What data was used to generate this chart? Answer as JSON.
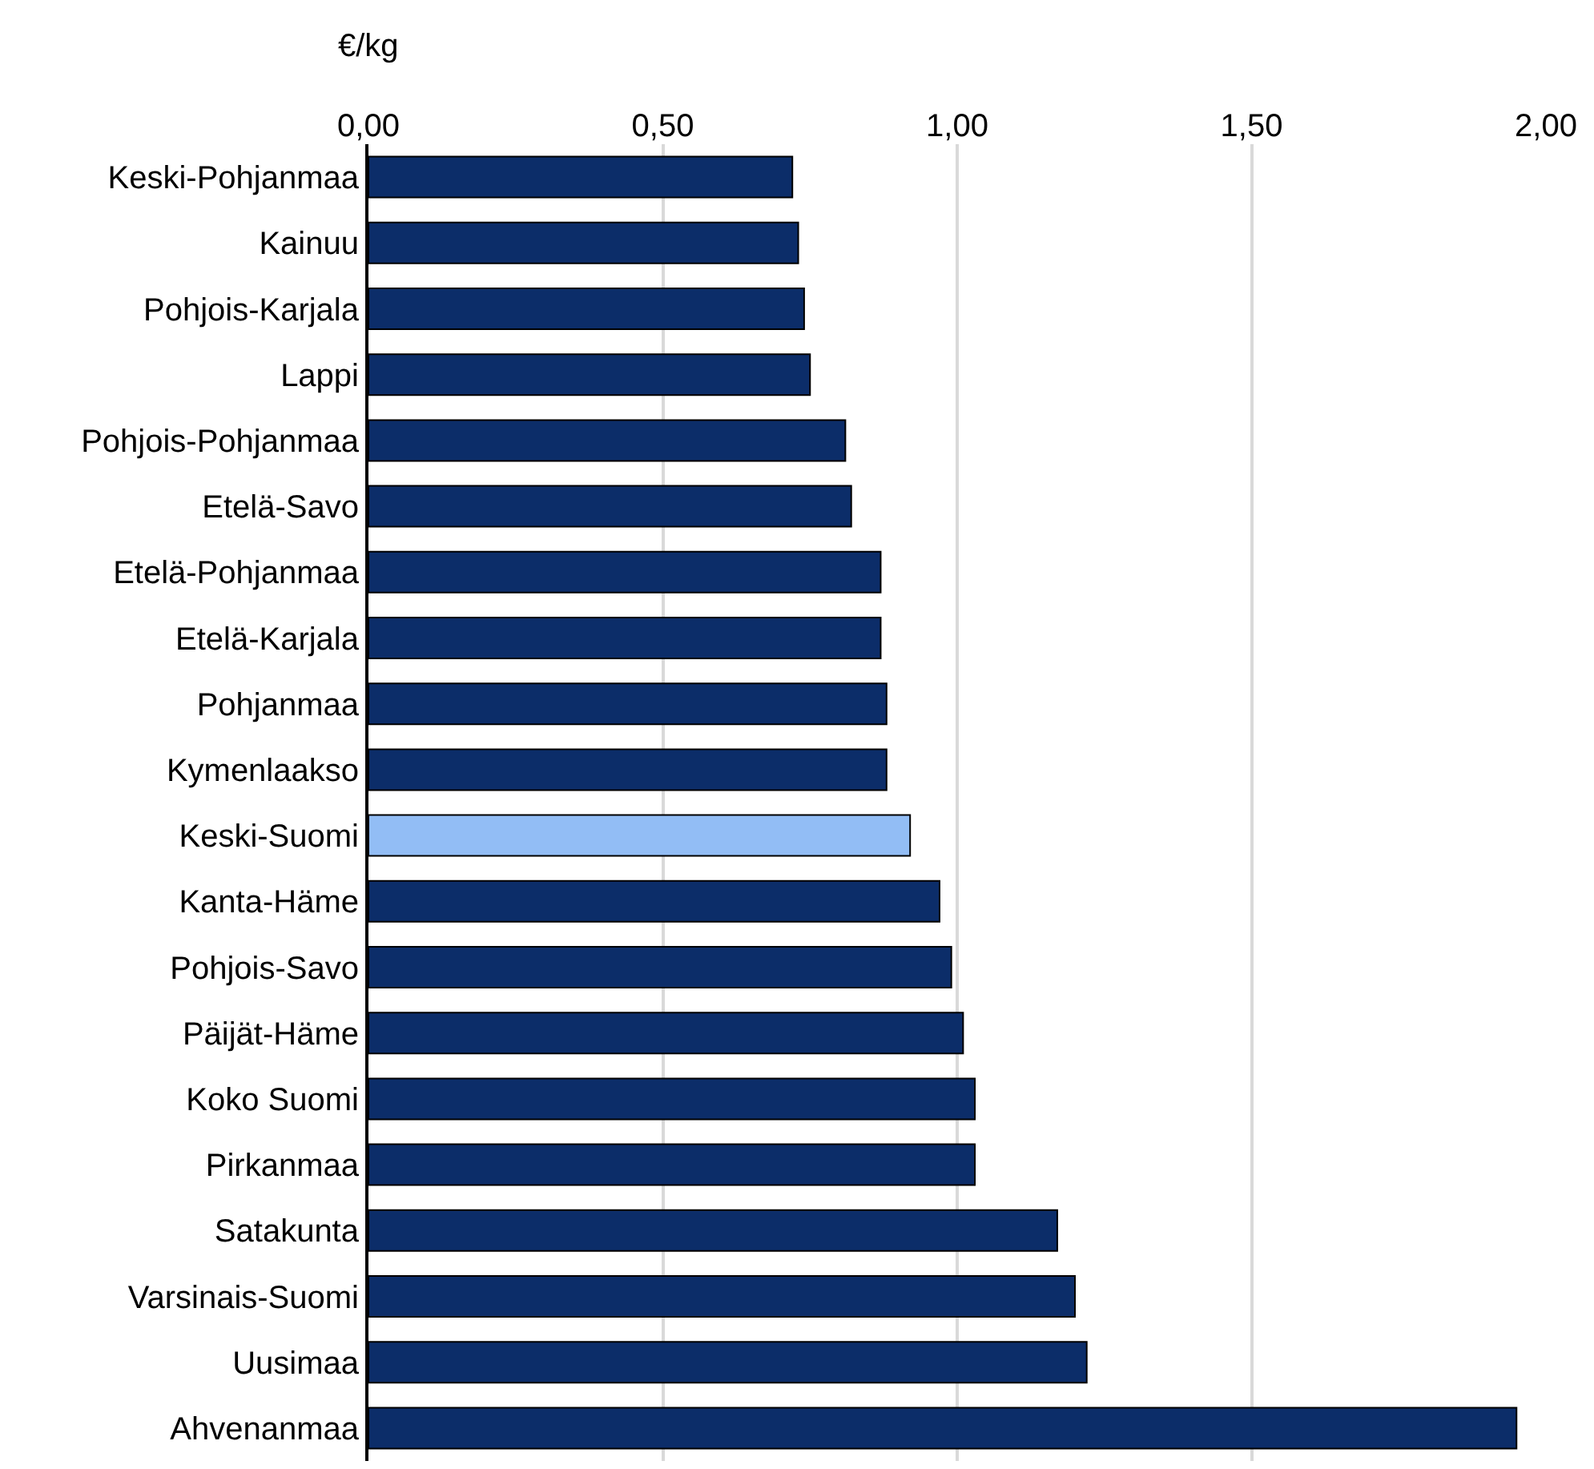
{
  "chart_data": {
    "type": "bar",
    "orientation": "horizontal",
    "xlabel": "€/kg",
    "categories": [
      "Keski-Pohjanmaa",
      "Kainuu",
      "Pohjois-Karjala",
      "Lappi",
      "Pohjois-Pohjanmaa",
      "Etelä-Savo",
      "Etelä-Pohjanmaa",
      "Etelä-Karjala",
      "Pohjanmaa",
      "Kymenlaakso",
      "Keski-Suomi",
      "Kanta-Häme",
      "Pohjois-Savo",
      "Päijät-Häme",
      "Koko Suomi",
      "Pirkanmaa",
      "Satakunta",
      "Varsinais-Suomi",
      "Uusimaa",
      "Ahvenanmaa"
    ],
    "values": [
      0.72,
      0.73,
      0.74,
      0.75,
      0.81,
      0.82,
      0.87,
      0.87,
      0.88,
      0.88,
      0.92,
      0.97,
      0.99,
      1.01,
      1.03,
      1.03,
      1.17,
      1.2,
      1.22,
      1.95
    ],
    "colors": [
      "#0c2d69",
      "#0c2d69",
      "#0c2d69",
      "#0c2d69",
      "#0c2d69",
      "#0c2d69",
      "#0c2d69",
      "#0c2d69",
      "#0c2d69",
      "#0c2d69",
      "#92bdf5",
      "#0c2d69",
      "#0c2d69",
      "#0c2d69",
      "#0c2d69",
      "#0c2d69",
      "#0c2d69",
      "#0c2d69",
      "#0c2d69",
      "#0c2d69"
    ],
    "xlim": [
      0,
      2
    ],
    "xticks": [
      {
        "value": 0,
        "label": "0,00"
      },
      {
        "value": 0.5,
        "label": "0,50"
      },
      {
        "value": 1,
        "label": "1,00"
      },
      {
        "value": 1.5,
        "label": "1,50"
      },
      {
        "value": 2,
        "label": "2,00"
      }
    ],
    "grid": "x"
  }
}
